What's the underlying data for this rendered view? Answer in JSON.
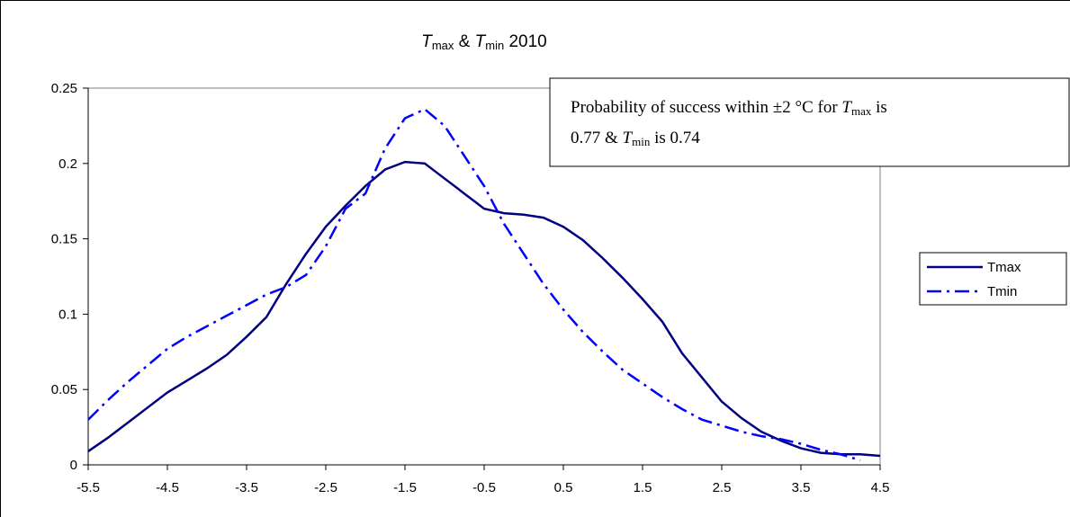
{
  "chart_data": {
    "type": "line",
    "title": [
      "T",
      "max",
      " & ",
      "T",
      "min",
      " 2010"
    ],
    "annotation": {
      "line1": [
        "Probability of success within ±2 °C for ",
        "T",
        "max",
        " is"
      ],
      "line2": [
        "0.77 & ",
        "T",
        "min",
        " is 0.74"
      ]
    },
    "x": [
      -5.5,
      -5.25,
      -5,
      -4.75,
      -4.5,
      -4.25,
      -4,
      -3.75,
      -3.5,
      -3.25,
      -3,
      -2.75,
      -2.5,
      -2.25,
      -2,
      -1.75,
      -1.5,
      -1.25,
      -1,
      -0.75,
      -0.5,
      -0.25,
      0,
      0.25,
      0.5,
      0.75,
      1,
      1.25,
      1.5,
      1.75,
      2,
      2.25,
      2.5,
      2.75,
      3,
      3.25,
      3.5,
      3.75,
      4,
      4.25,
      4.5
    ],
    "series": [
      {
        "name": "Tmax",
        "color": "#000080",
        "dash": "solid",
        "values": [
          0.009,
          0.018,
          0.028,
          0.038,
          0.048,
          0.056,
          0.064,
          0.073,
          0.085,
          0.098,
          0.12,
          0.14,
          0.158,
          0.172,
          0.185,
          0.196,
          0.201,
          0.2,
          0.19,
          0.18,
          0.17,
          0.167,
          0.166,
          0.164,
          0.158,
          0.149,
          0.137,
          0.124,
          0.11,
          0.095,
          0.074,
          0.058,
          0.042,
          0.031,
          0.022,
          0.016,
          0.011,
          0.008,
          0.007,
          0.007,
          0.006
        ]
      },
      {
        "name": "Tmin",
        "color": "#0000ff",
        "dash": "dash-dot",
        "values": [
          0.03,
          0.043,
          0.055,
          0.066,
          0.077,
          0.085,
          0.092,
          0.099,
          0.106,
          0.113,
          0.118,
          0.126,
          0.145,
          0.17,
          0.18,
          0.21,
          0.23,
          0.236,
          0.225,
          0.205,
          0.185,
          0.16,
          0.14,
          0.12,
          0.103,
          0.088,
          0.075,
          0.063,
          0.054,
          0.045,
          0.037,
          0.03,
          0.026,
          0.022,
          0.019,
          0.017,
          0.014,
          0.01,
          0.007,
          0.003,
          null
        ]
      }
    ],
    "xlim": [
      -5.5,
      4.5
    ],
    "xticks": [
      -5.5,
      -4.5,
      -3.5,
      -2.5,
      -1.5,
      -0.5,
      0.5,
      1.5,
      2.5,
      3.5,
      4.5
    ],
    "ylim": [
      0,
      0.25
    ],
    "yticks": [
      0,
      0.05,
      0.1,
      0.15,
      0.2,
      0.25
    ]
  }
}
